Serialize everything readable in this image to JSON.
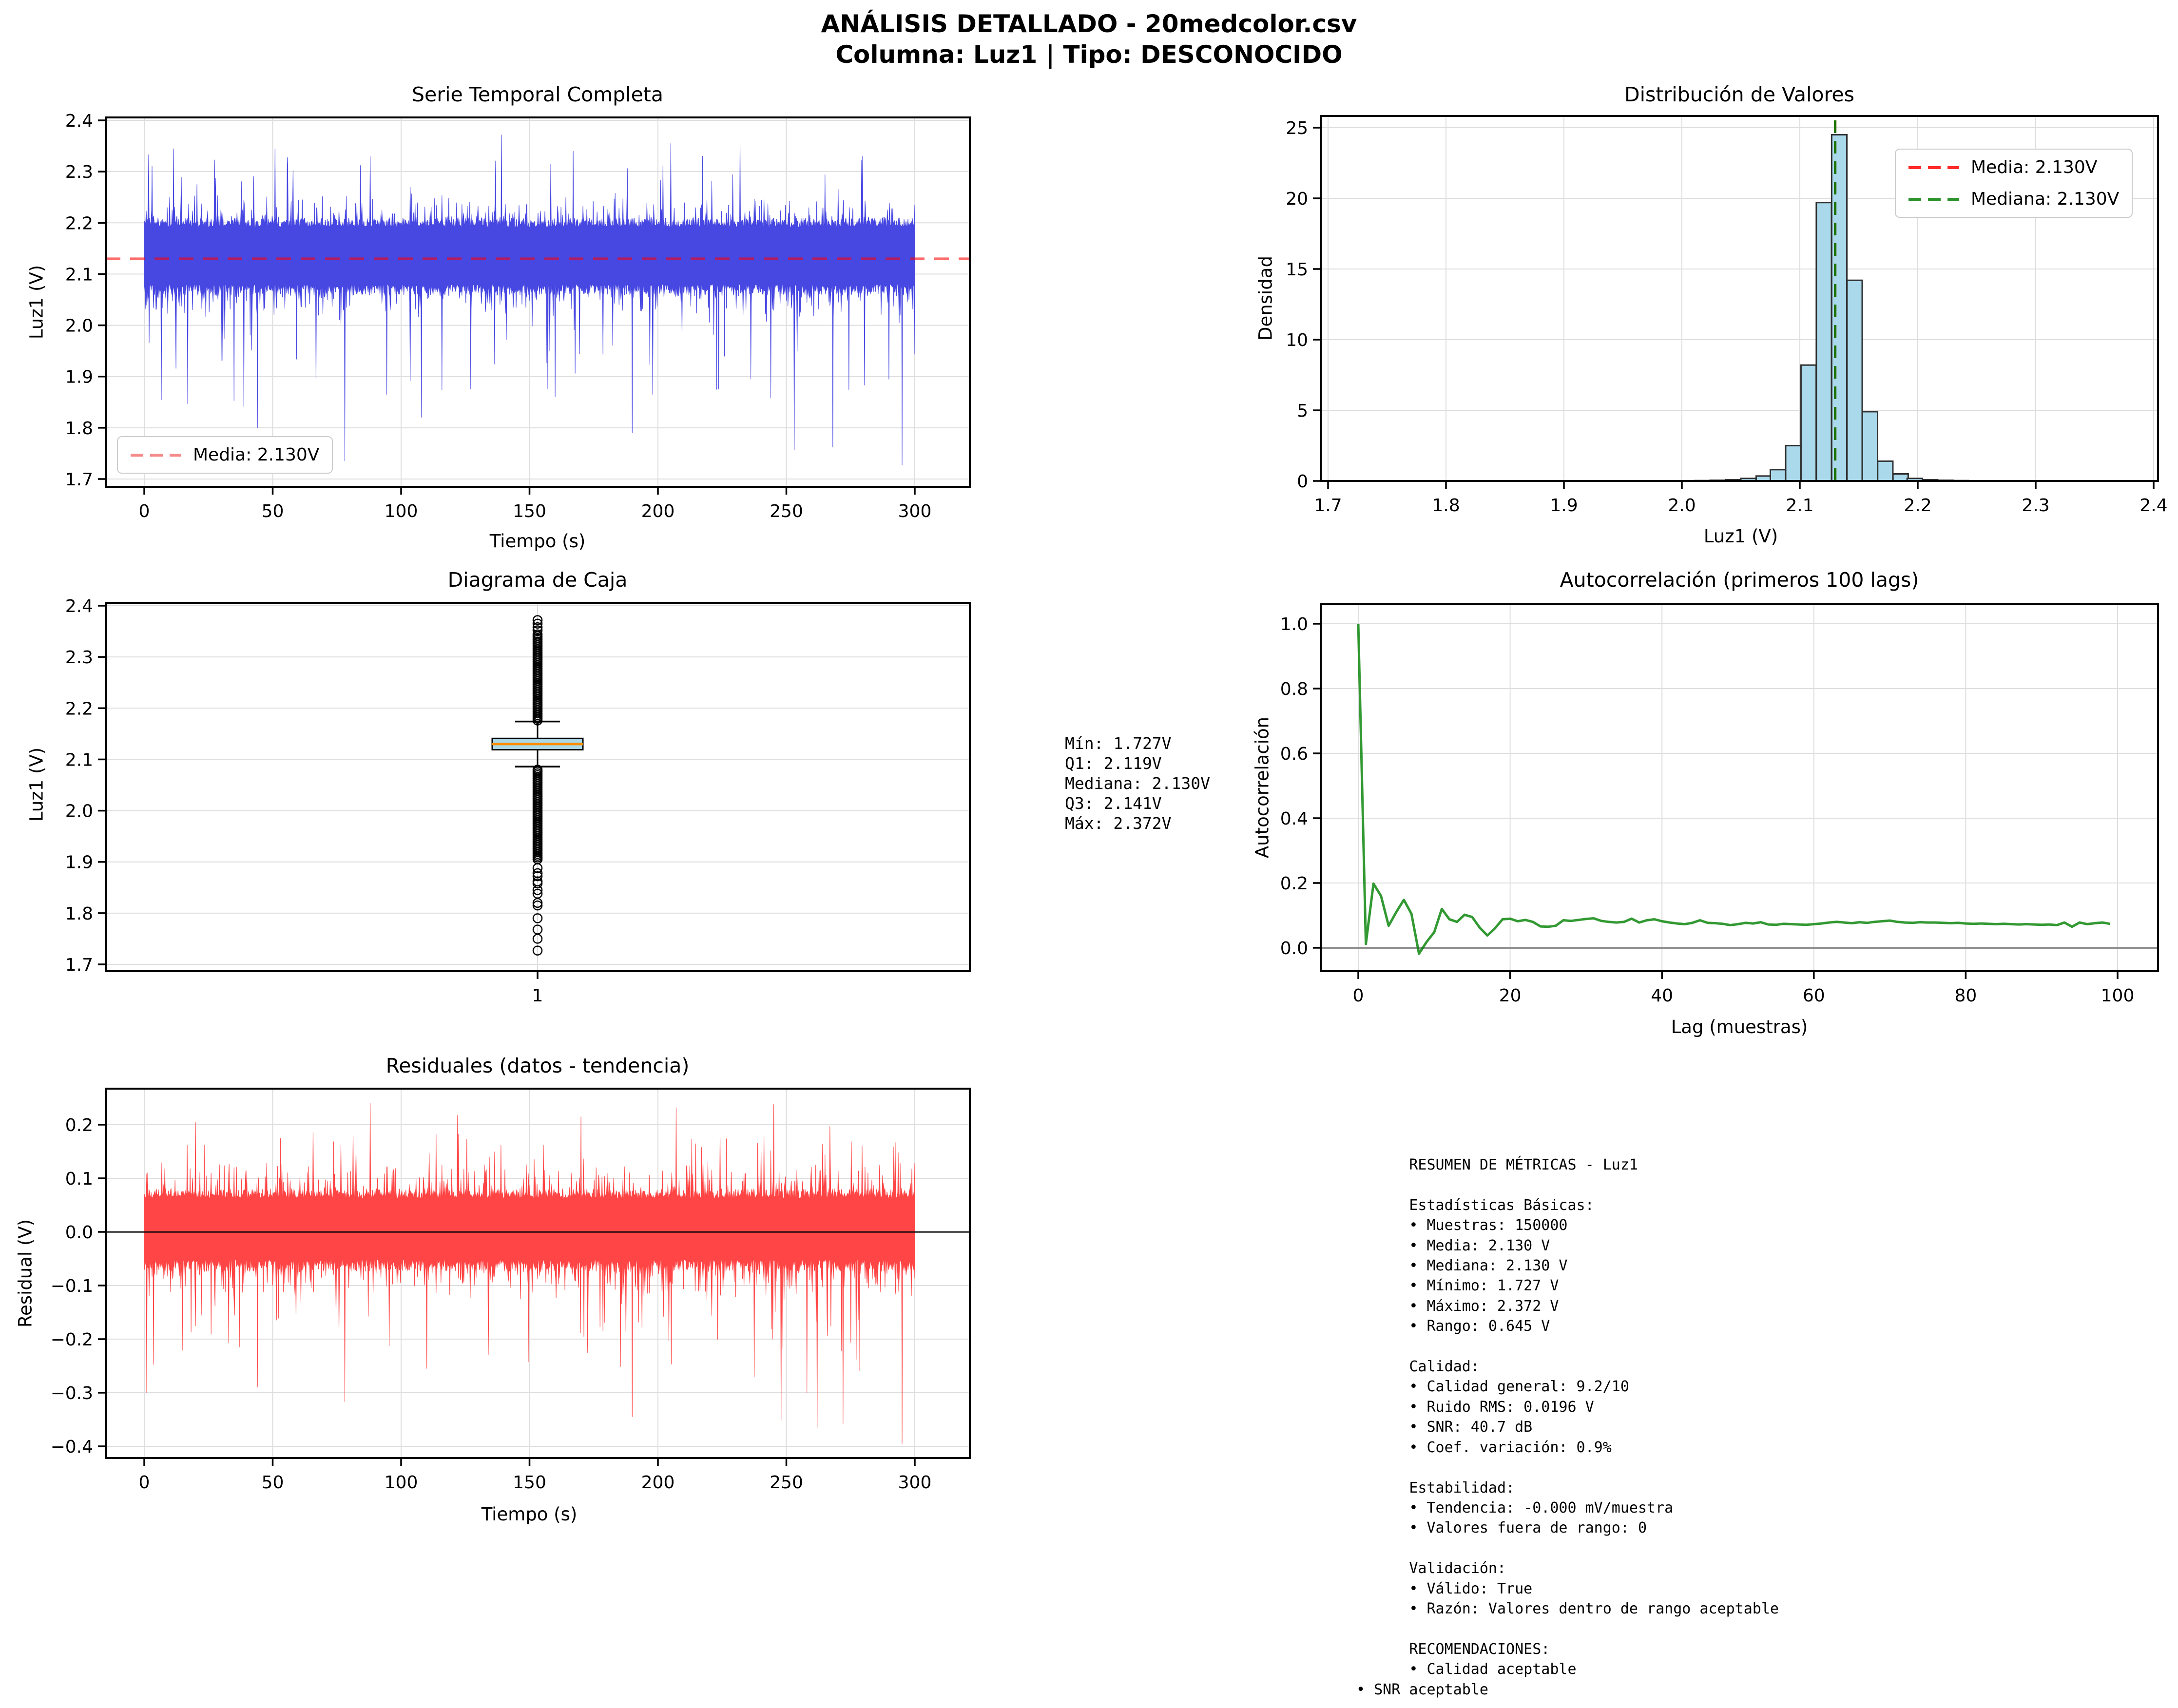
{
  "title": {
    "line1": "ANÁLISIS DETALLADO - 20medcolor.csv",
    "line2": "Columna: Luz1 | Tipo: DESCONOCIDO"
  },
  "colors": {
    "serie_blue": "#4747e2",
    "mean_red": "rgba(255,0,0,0.58)",
    "mean_red_legend": "#f48a8a",
    "hist_fill": "#abd9ec",
    "hist_edge": "#2f2f2f",
    "hist_mean_red": "rgba(255,0,0,0.9)",
    "hist_median_green": "rgba(0,128,0,0.9)",
    "legend_red": "#ff2b2b",
    "legend_green": "#2e942e",
    "acf_green": "rgba(0,128,0,0.8)",
    "residual_red": "#ff4545",
    "box_fill": "#add8e6",
    "box_median_orange": "#ff8c00",
    "zero_gray": "rgba(128,128,128,0.85)",
    "zero_black": "rgba(0,0,0,0.65)",
    "grid": "#dedede",
    "spine": "#000000"
  },
  "chart_data": [
    {
      "id": "serie",
      "type": "line",
      "title": "Serie Temporal Completa",
      "xlabel": "Tiempo (s)",
      "ylabel": "Luz1 (V)",
      "xlim": [
        -15,
        315
      ],
      "ylim": [
        1.7,
        2.4
      ],
      "xticks": [
        0,
        50,
        100,
        150,
        200,
        250,
        300
      ],
      "yticks": [
        "1.7",
        "1.8",
        "1.9",
        "2.0",
        "2.1",
        "2.2",
        "2.3",
        "2.4"
      ],
      "ytick_values": [
        1.7,
        1.8,
        1.9,
        2.0,
        2.1,
        2.2,
        2.3,
        2.4
      ],
      "mean": 2.13,
      "legend": [
        {
          "label": "Media: 2.130V"
        }
      ],
      "band": {
        "n": 1580,
        "seed": 1234,
        "hi0": 2.192,
        "hiJit": 0.018,
        "hiMed": 0.05,
        "hiBig": 0.14,
        "lo0": 2.08,
        "loJit": 0.022,
        "loMed": 0.05,
        "loBig": 0.22,
        "forceHi": [
          [
            139,
            2.372
          ],
          [
            51,
            2.345
          ],
          [
            205,
            2.355
          ],
          [
            232,
            2.35
          ],
          [
            88,
            2.33
          ],
          [
            167,
            2.34
          ]
        ],
        "forceLo": [
          [
            295,
            1.727
          ],
          [
            78,
            1.735
          ],
          [
            253,
            1.757
          ],
          [
            268,
            1.762
          ],
          [
            44,
            1.8
          ],
          [
            190,
            1.79
          ],
          [
            108,
            1.82
          ],
          [
            160,
            1.86
          ]
        ]
      }
    },
    {
      "id": "dist",
      "type": "bar",
      "title": "Distribución de Valores",
      "xlabel": "Luz1 (V)",
      "ylabel": "Densidad",
      "xlim": [
        1.7,
        2.4
      ],
      "ylim": [
        0,
        25.8
      ],
      "xticks": [
        "1.7",
        "1.8",
        "1.9",
        "2.0",
        "2.1",
        "2.2",
        "2.3",
        "2.4"
      ],
      "xtick_values": [
        1.7,
        1.8,
        1.9,
        2.0,
        2.1,
        2.2,
        2.3,
        2.4
      ],
      "yticks": [
        0,
        5,
        10,
        15,
        20,
        25
      ],
      "bin_width": 0.0129,
      "bars": [
        [
          1.727,
          0.02
        ],
        [
          1.83,
          0.01
        ],
        [
          1.92,
          0.01
        ],
        [
          1.985,
          0.02
        ],
        [
          2.011,
          0.03
        ],
        [
          2.024,
          0.05
        ],
        [
          2.037,
          0.09
        ],
        [
          2.05,
          0.18
        ],
        [
          2.063,
          0.35
        ],
        [
          2.075,
          0.8
        ],
        [
          2.088,
          2.5
        ],
        [
          2.101,
          8.2
        ],
        [
          2.114,
          19.7
        ],
        [
          2.127,
          24.5
        ],
        [
          2.14,
          14.2
        ],
        [
          2.153,
          4.9
        ],
        [
          2.166,
          1.4
        ],
        [
          2.179,
          0.5
        ],
        [
          2.191,
          0.18
        ],
        [
          2.204,
          0.09
        ],
        [
          2.217,
          0.05
        ],
        [
          2.23,
          0.03
        ],
        [
          2.256,
          0.02
        ],
        [
          2.32,
          0.01
        ],
        [
          2.359,
          0.02
        ]
      ],
      "mean": 2.13,
      "median": 2.13,
      "legend": [
        {
          "label": "Media: 2.130V",
          "color_key": "legend_red"
        },
        {
          "label": "Mediana: 2.130V",
          "color_key": "legend_green"
        }
      ]
    },
    {
      "id": "caja",
      "type": "box",
      "title": "Diagrama de Caja",
      "ylabel": "Luz1 (V)",
      "xtick_label": "1",
      "ylim": [
        1.7,
        2.4
      ],
      "yticks": [
        "1.7",
        "1.8",
        "1.9",
        "2.0",
        "2.1",
        "2.2",
        "2.3",
        "2.4"
      ],
      "ytick_values": [
        1.7,
        1.8,
        1.9,
        2.0,
        2.1,
        2.2,
        2.3,
        2.4
      ],
      "q1": 2.119,
      "median": 2.13,
      "q3": 2.141,
      "whisker_low": 2.086,
      "whisker_high": 2.174,
      "outliers_dense_top": [
        2.176,
        2.345,
        0.0035
      ],
      "outliers_sparse_top": [
        2.352,
        2.358,
        2.365,
        2.372
      ],
      "outliers_dense_bottom": [
        1.905,
        2.083,
        0.0035
      ],
      "outliers_sparse_bottom": [
        1.888,
        1.878,
        1.872,
        1.862,
        1.858,
        1.845,
        1.838,
        1.82,
        1.815,
        1.79,
        1.768,
        1.75,
        1.727
      ]
    },
    {
      "id": "acf",
      "type": "line",
      "title": "Autocorrelación (primeros 100 lags)",
      "xlabel": "Lag (muestras)",
      "ylabel": "Autocorrelación",
      "xticks": [
        0,
        20,
        40,
        60,
        80,
        100
      ],
      "yticks": [
        "0.0",
        "0.2",
        "0.4",
        "0.6",
        "0.8",
        "1.0"
      ],
      "ytick_values": [
        0.0,
        0.2,
        0.4,
        0.6,
        0.8,
        1.0
      ],
      "values": [
        1.0,
        0.012,
        0.198,
        0.16,
        0.068,
        0.11,
        0.148,
        0.105,
        -0.018,
        0.018,
        0.048,
        0.12,
        0.088,
        0.08,
        0.102,
        0.095,
        0.062,
        0.038,
        0.06,
        0.088,
        0.09,
        0.082,
        0.086,
        0.08,
        0.066,
        0.065,
        0.068,
        0.085,
        0.083,
        0.086,
        0.089,
        0.091,
        0.083,
        0.08,
        0.078,
        0.08,
        0.09,
        0.078,
        0.085,
        0.088,
        0.082,
        0.078,
        0.075,
        0.073,
        0.077,
        0.085,
        0.077,
        0.076,
        0.074,
        0.07,
        0.073,
        0.077,
        0.075,
        0.079,
        0.072,
        0.071,
        0.074,
        0.073,
        0.072,
        0.071,
        0.073,
        0.075,
        0.078,
        0.08,
        0.078,
        0.076,
        0.079,
        0.077,
        0.08,
        0.082,
        0.084,
        0.08,
        0.078,
        0.077,
        0.079,
        0.078,
        0.078,
        0.077,
        0.076,
        0.077,
        0.075,
        0.074,
        0.075,
        0.074,
        0.073,
        0.074,
        0.073,
        0.072,
        0.073,
        0.072,
        0.071,
        0.072,
        0.07,
        0.078,
        0.065,
        0.078,
        0.073,
        0.076,
        0.078,
        0.074
      ]
    },
    {
      "id": "residual",
      "type": "line",
      "title": "Residuales (datos - tendencia)",
      "xlabel": "Tiempo (s)",
      "ylabel": "Residual (V)",
      "xticks": [
        0,
        50,
        100,
        150,
        200,
        250,
        300
      ],
      "yticks": [
        "0.2",
        "0.1",
        "0.0",
        "−0.1",
        "−0.2",
        "−0.3",
        "−0.4"
      ],
      "ytick_values": [
        0.2,
        0.1,
        0.0,
        -0.1,
        -0.2,
        -0.3,
        -0.4
      ],
      "band": {
        "n": 1580,
        "seed": 987,
        "hi0": 0.063,
        "hiJit": 0.018,
        "hiMed": 0.055,
        "hiBig": 0.12,
        "lo0": -0.052,
        "loJit": 0.022,
        "loMed": 0.06,
        "loBig": 0.22,
        "forceHi": [
          [
            88,
            0.24
          ],
          [
            245,
            0.238
          ],
          [
            207,
            0.232
          ],
          [
            122,
            0.218
          ],
          [
            170,
            0.215
          ],
          [
            20,
            0.205
          ]
        ],
        "forceLo": [
          [
            295,
            -0.395
          ],
          [
            262,
            -0.365
          ],
          [
            272,
            -0.358
          ],
          [
            248,
            -0.352
          ],
          [
            190,
            -0.345
          ],
          [
            78,
            -0.317
          ],
          [
            1,
            -0.3
          ],
          [
            44,
            -0.29
          ],
          [
            258,
            -0.3
          ],
          [
            110,
            -0.255
          ]
        ]
      }
    }
  ],
  "stats_box": {
    "lines": [
      "Mín: 1.727V",
      "Q1: 2.119V",
      "Mediana: 2.130V",
      "Q3: 2.141V",
      "Máx: 2.372V"
    ]
  },
  "metrics_box": {
    "lines": [
      "      RESUMEN DE MÉTRICAS - Luz1",
      "",
      "      Estadísticas Básicas:",
      "      • Muestras: 150000",
      "      • Media: 2.130 V",
      "      • Mediana: 2.130 V",
      "      • Mínimo: 1.727 V",
      "      • Máximo: 2.372 V",
      "      • Rango: 0.645 V",
      "",
      "      Calidad:",
      "      • Calidad general: 9.2/10",
      "      • Ruido RMS: 0.0196 V",
      "      • SNR: 40.7 dB",
      "      • Coef. variación: 0.9%",
      "",
      "      Estabilidad:",
      "      • Tendencia: -0.000 mV/muestra",
      "      • Valores fuera de rango: 0",
      "",
      "      Validación:",
      "      • Válido: True",
      "      • Razón: Valores dentro de rango aceptable",
      "",
      "      RECOMENDACIONES:",
      "      • Calidad aceptable",
      "• SNR aceptable"
    ]
  }
}
